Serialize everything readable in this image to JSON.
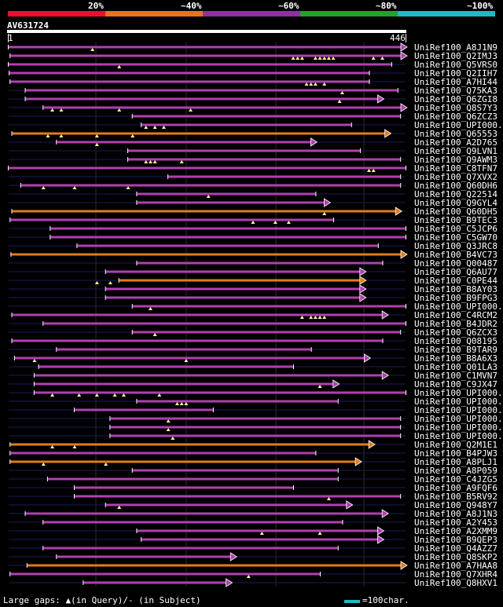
{
  "legend": {
    "marks": [
      "20%",
      "~40%",
      "~60%",
      "~80%",
      "~100%"
    ],
    "colors": [
      "#e8102e",
      "#e8731c",
      "#9a2b9e",
      "#1fa52a",
      "#1fb8c6"
    ]
  },
  "query": {
    "id": "AV631724",
    "start": "1",
    "end": "446",
    "length": 446
  },
  "footer": {
    "gaps_text": "Large gaps: ▲(in Query)/- (in Subject)",
    "scale_text": "=100char."
  },
  "hits": [
    {
      "label": "UniRef100_A8J1N9",
      "s": 1,
      "e": 446,
      "color": "purple",
      "arrow": true,
      "tris": [
        95
      ]
    },
    {
      "label": "UniRef100_Q2IMJ3",
      "s": 3,
      "e": 446,
      "color": "purple",
      "arrow": true,
      "tris": [
        320,
        325,
        330,
        345,
        350,
        355,
        360,
        365,
        410,
        420
      ]
    },
    {
      "label": "UniRef100_Q5VRS0",
      "s": 1,
      "e": 430,
      "color": "purple",
      "arrow": false,
      "tris": [
        125
      ]
    },
    {
      "label": "UniRef100_Q2IIH7",
      "s": 2,
      "e": 405,
      "color": "purple",
      "arrow": false,
      "tris": []
    },
    {
      "label": "UniRef100_A7HI44",
      "s": 3,
      "e": 405,
      "color": "purple",
      "arrow": false,
      "tris": [
        335,
        340,
        345,
        355
      ]
    },
    {
      "label": "UniRef100_Q75KA3",
      "s": 20,
      "e": 437,
      "color": "purple",
      "arrow": false,
      "tris": [
        375
      ]
    },
    {
      "label": "UniRef100_Q6ZGI8",
      "s": 20,
      "e": 420,
      "color": "purple",
      "arrow": true,
      "tris": [
        372
      ]
    },
    {
      "label": "UniRef100_Q8S7Y3",
      "s": 40,
      "e": 446,
      "color": "purple",
      "arrow": true,
      "tris": [
        50,
        60,
        125,
        205
      ]
    },
    {
      "label": "UniRef100_Q6ZCZ3",
      "s": 140,
      "e": 440,
      "color": "purple",
      "arrow": false,
      "tris": []
    },
    {
      "label": "UniRef100_UPI000..",
      "s": 150,
      "e": 385,
      "color": "purple",
      "arrow": false,
      "tris": [
        155,
        165,
        175
      ]
    },
    {
      "label": "UniRef100_Q65553",
      "s": 5,
      "e": 428,
      "color": "orange",
      "arrow": true,
      "tris": [
        45,
        60,
        100,
        140
      ]
    },
    {
      "label": "UniRef100_A2D765",
      "s": 55,
      "e": 345,
      "color": "purple",
      "arrow": true,
      "tris": [
        100
      ]
    },
    {
      "label": "UniRef100_Q9LVN1",
      "s": 135,
      "e": 395,
      "color": "purple",
      "arrow": false,
      "tris": []
    },
    {
      "label": "UniRef100_Q9AWM3",
      "s": 135,
      "e": 440,
      "color": "purple",
      "arrow": false,
      "tris": [
        155,
        160,
        165,
        195
      ]
    },
    {
      "label": "UniRef100_C8TFN7",
      "s": 1,
      "e": 446,
      "color": "purple",
      "arrow": false,
      "tris": [
        405,
        410
      ]
    },
    {
      "label": "UniRef100_Q7XVX2",
      "s": 180,
      "e": 440,
      "color": "purple",
      "arrow": false,
      "tris": []
    },
    {
      "label": "UniRef100_Q60DH6",
      "s": 15,
      "e": 440,
      "color": "purple",
      "arrow": false,
      "tris": [
        40,
        75,
        135
      ]
    },
    {
      "label": "UniRef100_Q22514",
      "s": 145,
      "e": 345,
      "color": "purple",
      "arrow": false,
      "tris": [
        225
      ]
    },
    {
      "label": "UniRef100_Q9GYL4",
      "s": 145,
      "e": 360,
      "color": "purple",
      "arrow": true,
      "tris": []
    },
    {
      "label": "UniRef100_Q60DH5",
      "s": 5,
      "e": 440,
      "color": "orange",
      "arrow": true,
      "tris": [
        355
      ]
    },
    {
      "label": "UniRef100_B9TEC3",
      "s": 3,
      "e": 365,
      "color": "purple",
      "arrow": false,
      "tris": [
        275,
        300,
        315
      ]
    },
    {
      "label": "UniRef100_C5JCP6",
      "s": 48,
      "e": 446,
      "color": "purple",
      "arrow": false,
      "tris": []
    },
    {
      "label": "UniRef100_C5GW70",
      "s": 48,
      "e": 446,
      "color": "purple",
      "arrow": false,
      "tris": []
    },
    {
      "label": "UniRef100_Q3JRC8",
      "s": 78,
      "e": 415,
      "color": "purple",
      "arrow": false,
      "tris": []
    },
    {
      "label": "UniRef100_B4VC73",
      "s": 4,
      "e": 446,
      "color": "orange",
      "arrow": true,
      "tris": []
    },
    {
      "label": "UniRef100_Q00487",
      "s": 145,
      "e": 420,
      "color": "purple",
      "arrow": false,
      "tris": []
    },
    {
      "label": "UniRef100_Q6AU77",
      "s": 110,
      "e": 400,
      "color": "purple",
      "arrow": true,
      "tris": []
    },
    {
      "label": "UniRef100_C0PE44",
      "s": 125,
      "e": 400,
      "color": "orange",
      "arrow": true,
      "tris": [
        100,
        115
      ]
    },
    {
      "label": "UniRef100_B8AY03",
      "s": 110,
      "e": 400,
      "color": "purple",
      "arrow": true,
      "tris": []
    },
    {
      "label": "UniRef100_B9FPG3",
      "s": 110,
      "e": 400,
      "color": "purple",
      "arrow": true,
      "tris": []
    },
    {
      "label": "UniRef100_UPI000..",
      "s": 140,
      "e": 446,
      "color": "purple",
      "arrow": false,
      "tris": [
        160
      ]
    },
    {
      "label": "UniRef100_C4RCM2",
      "s": 5,
      "e": 425,
      "color": "purple",
      "arrow": true,
      "tris": [
        330,
        340,
        345,
        350,
        355
      ]
    },
    {
      "label": "UniRef100_B4JDR2",
      "s": 40,
      "e": 446,
      "color": "purple",
      "arrow": false,
      "tris": []
    },
    {
      "label": "UniRef100_Q6ZCX3",
      "s": 140,
      "e": 440,
      "color": "purple",
      "arrow": false,
      "tris": [
        165
      ]
    },
    {
      "label": "UniRef100_Q08195",
      "s": 5,
      "e": 420,
      "color": "purple",
      "arrow": false,
      "tris": []
    },
    {
      "label": "UniRef100_B9TAR9",
      "s": 55,
      "e": 340,
      "color": "purple",
      "arrow": false,
      "tris": []
    },
    {
      "label": "UniRef100_B8A6X3",
      "s": 8,
      "e": 405,
      "color": "purple",
      "arrow": true,
      "tris": [
        30,
        200
      ]
    },
    {
      "label": "UniRef100_Q01LA3",
      "s": 35,
      "e": 320,
      "color": "purple",
      "arrow": false,
      "tris": []
    },
    {
      "label": "UniRef100_C1MVN7",
      "s": 30,
      "e": 425,
      "color": "purple",
      "arrow": true,
      "tris": []
    },
    {
      "label": "UniRef100_C9JX47",
      "s": 30,
      "e": 370,
      "color": "purple",
      "arrow": true,
      "tris": [
        350
      ]
    },
    {
      "label": "UniRef100_UPI000..",
      "s": 30,
      "e": 446,
      "color": "purple",
      "arrow": false,
      "tris": [
        50,
        80,
        100,
        120,
        130,
        170
      ]
    },
    {
      "label": "UniRef100_UPI000..",
      "s": 145,
      "e": 370,
      "color": "purple",
      "arrow": false,
      "tris": [
        190,
        195,
        200
      ]
    },
    {
      "label": "UniRef100_UPI000..",
      "s": 75,
      "e": 230,
      "color": "purple",
      "arrow": false,
      "tris": []
    },
    {
      "label": "UniRef100_UPI000..",
      "s": 115,
      "e": 440,
      "color": "purple",
      "arrow": false,
      "tris": [
        180
      ]
    },
    {
      "label": "UniRef100_UPI000..",
      "s": 115,
      "e": 440,
      "color": "purple",
      "arrow": false,
      "tris": [
        180
      ]
    },
    {
      "label": "UniRef100_UPI000..",
      "s": 115,
      "e": 440,
      "color": "purple",
      "arrow": false,
      "tris": [
        185
      ]
    },
    {
      "label": "UniRef100_Q2M1E1",
      "s": 3,
      "e": 410,
      "color": "orange",
      "arrow": true,
      "tris": [
        50,
        75
      ]
    },
    {
      "label": "UniRef100_B4PJW3",
      "s": 3,
      "e": 345,
      "color": "purple",
      "arrow": false,
      "tris": []
    },
    {
      "label": "UniRef100_A8PLJ1",
      "s": 3,
      "e": 395,
      "color": "orange",
      "arrow": true,
      "tris": [
        40,
        110
      ]
    },
    {
      "label": "UniRef100_A8P059",
      "s": 140,
      "e": 370,
      "color": "purple",
      "arrow": false,
      "tris": []
    },
    {
      "label": "UniRef100_C4JZG5",
      "s": 45,
      "e": 370,
      "color": "purple",
      "arrow": false,
      "tris": []
    },
    {
      "label": "UniRef100_A9FQF6",
      "s": 75,
      "e": 320,
      "color": "purple",
      "arrow": false,
      "tris": []
    },
    {
      "label": "UniRef100_B5RV92",
      "s": 75,
      "e": 440,
      "color": "purple",
      "arrow": false,
      "tris": [
        360
      ]
    },
    {
      "label": "UniRef100_Q948Y7",
      "s": 110,
      "e": 385,
      "color": "purple",
      "arrow": true,
      "tris": [
        125
      ]
    },
    {
      "label": "UniRef100_A8J1N3",
      "s": 20,
      "e": 425,
      "color": "purple",
      "arrow": true,
      "tris": []
    },
    {
      "label": "UniRef100_A2Y453",
      "s": 40,
      "e": 375,
      "color": "purple",
      "arrow": false,
      "tris": []
    },
    {
      "label": "UniRef100_A2XMM9",
      "s": 145,
      "e": 420,
      "color": "purple",
      "arrow": true,
      "tris": [
        285,
        350
      ]
    },
    {
      "label": "UniRef100_B9QEP3",
      "s": 150,
      "e": 420,
      "color": "purple",
      "arrow": true,
      "tris": []
    },
    {
      "label": "UniRef100_Q4AZZ7",
      "s": 40,
      "e": 370,
      "color": "purple",
      "arrow": false,
      "tris": []
    },
    {
      "label": "UniRef100_Q8SKP2",
      "s": 55,
      "e": 255,
      "color": "purple",
      "arrow": true,
      "tris": []
    },
    {
      "label": "UniRef100_A7HAA8",
      "s": 22,
      "e": 446,
      "color": "orange",
      "arrow": true,
      "tris": []
    },
    {
      "label": "UniRef100_Q7XHR4",
      "s": 3,
      "e": 350,
      "color": "purple",
      "arrow": false,
      "tris": [
        270
      ]
    },
    {
      "label": "UniRef100_Q8HXV1",
      "s": 85,
      "e": 250,
      "color": "purple",
      "arrow": true,
      "tris": []
    }
  ]
}
